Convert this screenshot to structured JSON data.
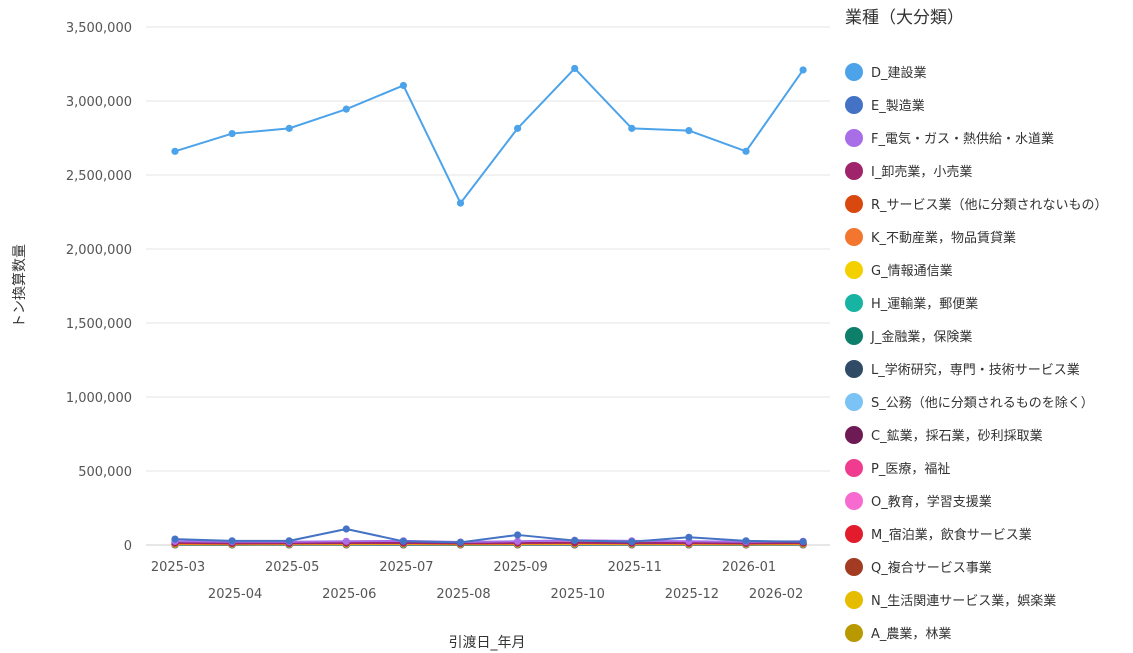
{
  "chart_data": {
    "type": "line",
    "legend_title": "業種（大分類）",
    "xlabel": "引渡日_年月",
    "ylabel": "トン換算数量",
    "ylim": [
      0,
      3500000
    ],
    "yticks": [
      0,
      500000,
      1000000,
      1500000,
      2000000,
      2500000,
      3000000,
      3500000
    ],
    "ytick_labels": [
      "0",
      "500,000",
      "1,000,000",
      "1,500,000",
      "2,000,000",
      "2,500,000",
      "3,000,000",
      "3,500,000"
    ],
    "categories": [
      "2025-03",
      "2025-04",
      "2025-05",
      "2025-06",
      "2025-07",
      "2025-08",
      "2025-09",
      "2025-10",
      "2025-11",
      "2025-12",
      "2026-01",
      "2026-02"
    ],
    "grid": true,
    "legend_position": "right",
    "series": [
      {
        "name": "D_建設業",
        "color": "#4da3ea",
        "values": [
          2660000,
          2780000,
          2815000,
          2945000,
          3105000,
          2310000,
          2815000,
          3220000,
          2815000,
          2800000,
          2660000,
          3210000
        ]
      },
      {
        "name": "E_製造業",
        "color": "#4472c4",
        "values": [
          40000,
          28000,
          28000,
          108000,
          25000,
          18000,
          68000,
          30000,
          22000,
          52000,
          28000,
          22000
        ]
      },
      {
        "name": "F_電気・ガス・熱供給・水道業",
        "color": "#a86ee8",
        "values": [
          25000,
          22000,
          22000,
          25000,
          28000,
          20000,
          25000,
          32000,
          28000,
          25000,
          22000,
          25000
        ]
      },
      {
        "name": "I_卸売業，小売業",
        "color": "#a0246b",
        "values": [
          15000,
          12000,
          12000,
          14000,
          14000,
          12000,
          14000,
          16000,
          13000,
          14000,
          12000,
          14000
        ]
      },
      {
        "name": "R_サービス業（他に分類されないもの）",
        "color": "#d9480f",
        "values": [
          12000,
          10000,
          11000,
          12000,
          13000,
          10000,
          12000,
          14000,
          12000,
          12000,
          11000,
          12000
        ]
      },
      {
        "name": "K_不動産業，物品賃貸業",
        "color": "#f2762e",
        "values": [
          9000,
          8000,
          9000,
          10000,
          10000,
          8000,
          9000,
          10000,
          9000,
          9000,
          8000,
          9000
        ]
      },
      {
        "name": "G_情報通信業",
        "color": "#f5d000",
        "values": [
          6000,
          5000,
          6000,
          6000,
          7000,
          5000,
          6000,
          7000,
          6000,
          6000,
          5000,
          6000
        ]
      },
      {
        "name": "H_運輸業，郵便業",
        "color": "#17b3a3",
        "values": [
          5000,
          4000,
          5000,
          5000,
          5000,
          4000,
          5000,
          6000,
          5000,
          5000,
          4000,
          5000
        ]
      },
      {
        "name": "J_金融業，保険業",
        "color": "#0e7f6b",
        "values": [
          3000,
          3000,
          3000,
          3000,
          3000,
          3000,
          3000,
          3000,
          3000,
          3000,
          3000,
          3000
        ]
      },
      {
        "name": "L_学術研究，専門・技術サービス業",
        "color": "#2f4b66",
        "values": [
          3000,
          2000,
          3000,
          3000,
          3000,
          2000,
          3000,
          3000,
          3000,
          3000,
          2000,
          3000
        ]
      },
      {
        "name": "S_公務（他に分類されるものを除く）",
        "color": "#7cc3f5",
        "values": [
          2000,
          2000,
          2000,
          2000,
          2000,
          2000,
          2000,
          2000,
          2000,
          2000,
          2000,
          2000
        ]
      },
      {
        "name": "C_鉱業，採石業，砂利採取業",
        "color": "#6e1a55",
        "values": [
          2000,
          2000,
          2000,
          2000,
          2000,
          2000,
          2000,
          2000,
          2000,
          2000,
          2000,
          2000
        ]
      },
      {
        "name": "P_医療，福祉",
        "color": "#f03c8f",
        "values": [
          1500,
          1500,
          1500,
          1500,
          1500,
          1500,
          1500,
          1500,
          1500,
          1500,
          1500,
          1500
        ]
      },
      {
        "name": "O_教育，学習支援業",
        "color": "#f76bd0",
        "values": [
          1000,
          1000,
          1000,
          1000,
          1000,
          1000,
          1000,
          1000,
          1000,
          1000,
          1000,
          1000
        ]
      },
      {
        "name": "M_宿泊業，飲食サービス業",
        "color": "#e31c2d",
        "values": [
          1000,
          1000,
          1000,
          1000,
          1000,
          1000,
          1000,
          1000,
          1000,
          1000,
          1000,
          1000
        ]
      },
      {
        "name": "Q_複合サービス事業",
        "color": "#a23b22",
        "values": [
          800,
          800,
          800,
          800,
          800,
          800,
          800,
          800,
          800,
          800,
          800,
          800
        ]
      },
      {
        "name": "N_生活関連サービス業，娯楽業",
        "color": "#e5bc00",
        "values": [
          600,
          600,
          600,
          600,
          600,
          600,
          600,
          600,
          600,
          600,
          600,
          600
        ]
      },
      {
        "name": "A_農業，林業",
        "color": "#b89a00",
        "values": [
          500,
          500,
          500,
          500,
          500,
          500,
          500,
          500,
          500,
          500,
          500,
          500
        ]
      }
    ]
  }
}
